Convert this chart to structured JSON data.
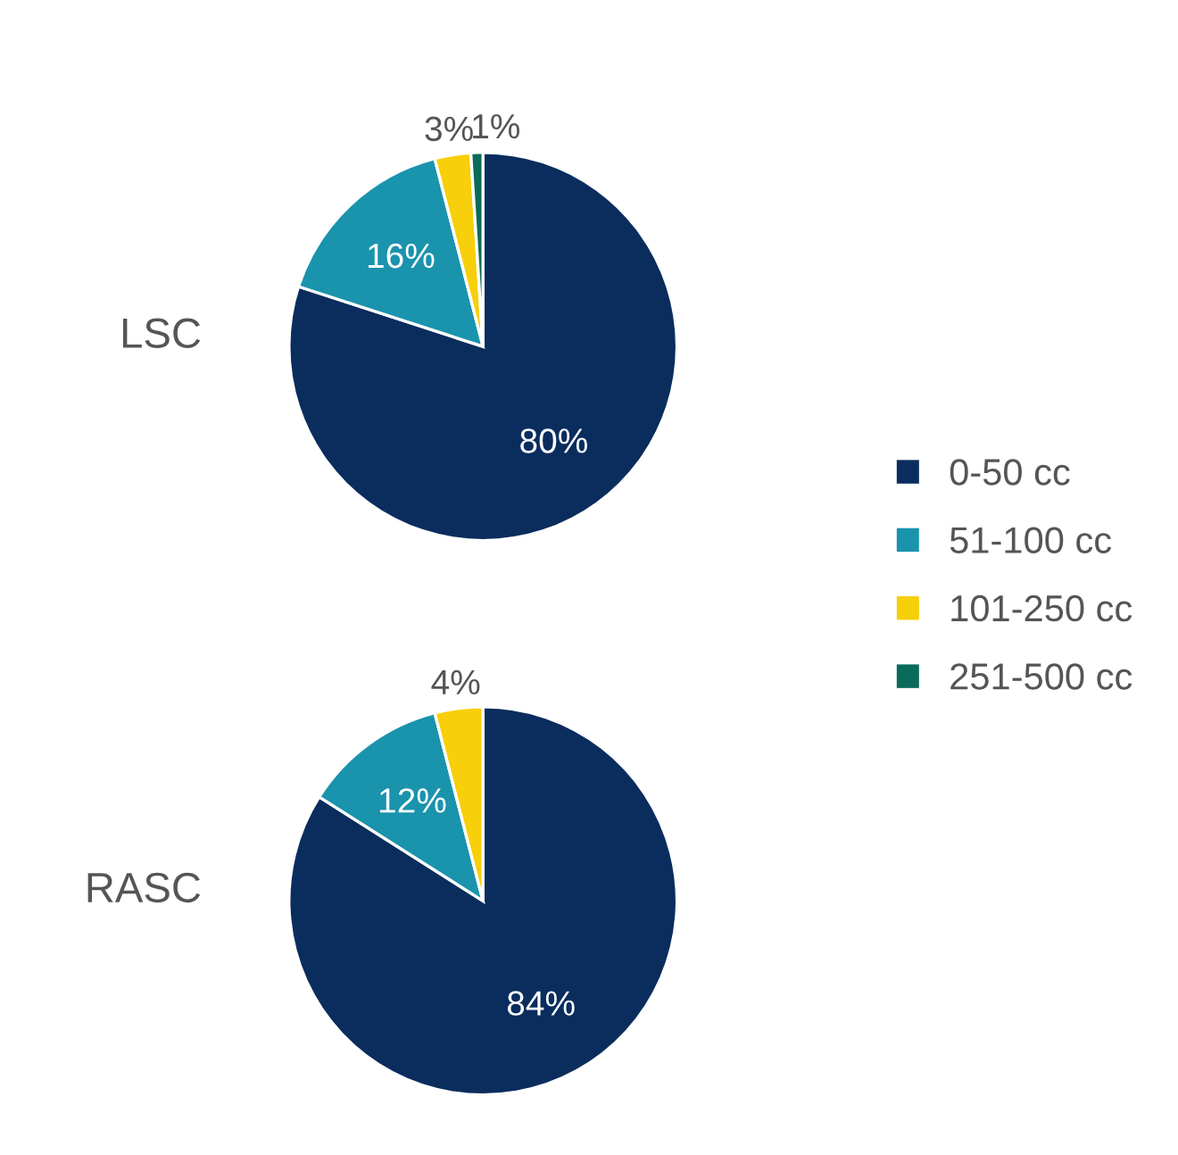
{
  "chart_data": [
    {
      "type": "pie",
      "title": "LSC",
      "categories": [
        "0-50 cc",
        "51-100 cc",
        "101-250 cc",
        "251-500 cc"
      ],
      "values": [
        80,
        16,
        3,
        1
      ],
      "value_labels": [
        "80%",
        "16%",
        "3%",
        "1%"
      ],
      "colors": [
        "#0a2d5e",
        "#1a93ad",
        "#f7cf0a",
        "#0b6b5a"
      ],
      "legend": "right"
    },
    {
      "type": "pie",
      "title": "RASC",
      "categories": [
        null,
        null,
        null
      ],
      "values": [
        84,
        12,
        4
      ],
      "value_labels": [
        "84%",
        "12%",
        "4%"
      ],
      "colors": [
        "#0a2d5e",
        "#1a93ad",
        "#f7cf0a"
      ]
    }
  ]
}
